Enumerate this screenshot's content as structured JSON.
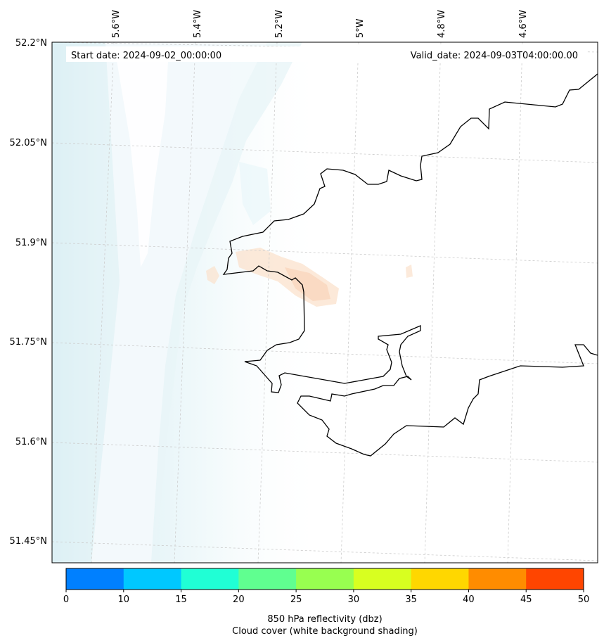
{
  "header": {
    "start_date": "Start date: 2024-09-02_00:00:00",
    "valid_date": "Valid_date: 2024-09-03T04:00:00.00"
  },
  "longitude_labels": [
    "5.6°W",
    "5.4°W",
    "5.2°W",
    "5°W",
    "4.8°W",
    "4.6°W"
  ],
  "latitude_labels": [
    "52.2°N",
    "52.05°N",
    "51.9°N",
    "51.75°N",
    "51.6°N",
    "51.45°N"
  ],
  "colorbar": {
    "ticks": [
      "0",
      "10",
      "15",
      "20",
      "25",
      "30",
      "35",
      "40",
      "45",
      "50"
    ],
    "colors": [
      "#0080ff",
      "#00c8ff",
      "#20ffd5",
      "#60ff90",
      "#98ff50",
      "#d8ff20",
      "#ffd700",
      "#ff8c00",
      "#ff4500"
    ],
    "label_line1": "850 hPa reflectivity (dbz)",
    "label_line2": "Cloud cover (white background shading)"
  },
  "colors": {
    "cloud_shade": "#a8d8e6",
    "reflectivity_weak": "#fbe1cc",
    "coast": "#000000",
    "grid": "#cccccc"
  }
}
